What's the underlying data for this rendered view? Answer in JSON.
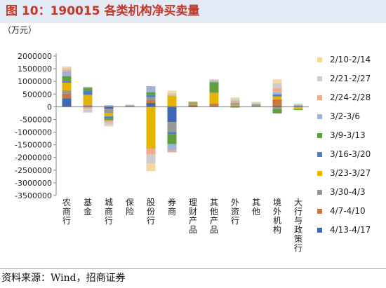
{
  "title": "图 10：190015 各类机构净买卖量",
  "source": "资料来源：Wind，招商证券",
  "chart_data": {
    "type": "bar",
    "stacked": true,
    "ylabel": "（万元）",
    "ylim": [
      -3500000,
      2000000
    ],
    "yticks": [
      2000000,
      1500000,
      1000000,
      500000,
      0,
      -500000,
      -1000000,
      -1500000,
      -2000000,
      -2500000,
      -3000000,
      -3500000
    ],
    "ytick_labels": [
      "2000000",
      "1500000",
      "1000000",
      "500000",
      "0",
      "-500000",
      "-1000000",
      "-1500000",
      "-2000000",
      "-2500000",
      "-3000000",
      "-3500000"
    ],
    "categories": [
      "农商行",
      "基金",
      "城商行",
      "保险",
      "股份行",
      "券商",
      "理财产品",
      "其他产品",
      "外资行",
      "其他",
      "境外机构",
      "大行与政策行"
    ],
    "legend_position": "right",
    "grid": false,
    "series": [
      {
        "name": "4/13-4/17",
        "color": "#3f69b8",
        "values": [
          330000,
          20000,
          -80000,
          10000,
          150000,
          -600000,
          40000,
          10000,
          -30000,
          20000,
          40000,
          20000
        ]
      },
      {
        "name": "4/7-4/10",
        "color": "#c9773d",
        "values": [
          200000,
          30000,
          -30000,
          5000,
          120000,
          20000,
          30000,
          120000,
          30000,
          10000,
          250000,
          10000
        ]
      },
      {
        "name": "3/30-4/3",
        "color": "#979797",
        "values": [
          120000,
          20000,
          -150000,
          5000,
          110000,
          -400000,
          40000,
          -10000,
          20000,
          10000,
          -80000,
          -20000
        ]
      },
      {
        "name": "3/23-3/27",
        "color": "#e4b400",
        "values": [
          300000,
          400000,
          -120000,
          10000,
          -1650000,
          420000,
          20000,
          420000,
          60000,
          10000,
          120000,
          -80000
        ]
      },
      {
        "name": "3/16-3/20",
        "color": "#4f7fc1",
        "values": [
          60000,
          160000,
          -70000,
          5000,
          80000,
          -70000,
          10000,
          20000,
          10000,
          10000,
          80000,
          10000
        ]
      },
      {
        "name": "3/9-3/13",
        "color": "#61a039",
        "values": [
          200000,
          120000,
          -80000,
          10000,
          120000,
          -400000,
          30000,
          400000,
          20000,
          20000,
          -180000,
          -30000
        ]
      },
      {
        "name": "3/2-3/6",
        "color": "#9eb3d9",
        "values": [
          180000,
          30000,
          60000,
          20000,
          230000,
          -250000,
          20000,
          40000,
          30000,
          30000,
          80000,
          30000
        ]
      },
      {
        "name": "2/24-2/28",
        "color": "#f0ab8e",
        "values": [
          80000,
          -80000,
          -90000,
          5000,
          -240000,
          -80000,
          10000,
          40000,
          80000,
          20000,
          180000,
          20000
        ]
      },
      {
        "name": "2/21-2/27",
        "color": "#cdcdcd",
        "values": [
          60000,
          -150000,
          -100000,
          5000,
          -350000,
          100000,
          10000,
          20000,
          50000,
          30000,
          180000,
          20000
        ]
      },
      {
        "name": "2/10-2/14",
        "color": "#f8d79d",
        "values": [
          60000,
          10000,
          -60000,
          20000,
          -300000,
          90000,
          10000,
          20000,
          70000,
          40000,
          150000,
          20000
        ]
      }
    ]
  }
}
